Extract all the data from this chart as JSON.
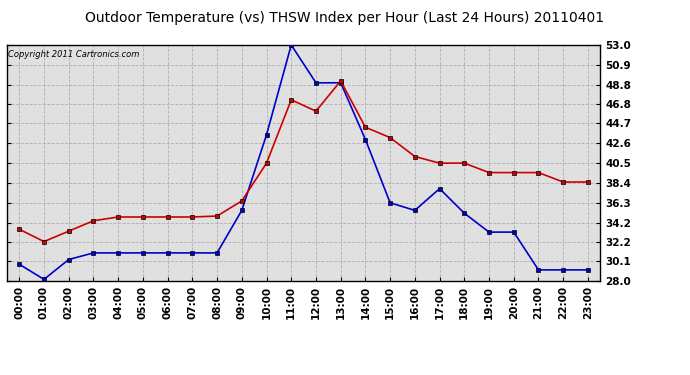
{
  "title": "Outdoor Temperature (vs) THSW Index per Hour (Last 24 Hours) 20110401",
  "copyright": "Copyright 2011 Cartronics.com",
  "hours": [
    0,
    1,
    2,
    3,
    4,
    5,
    6,
    7,
    8,
    9,
    10,
    11,
    12,
    13,
    14,
    15,
    16,
    17,
    18,
    19,
    20,
    21,
    22,
    23
  ],
  "temp": [
    33.5,
    32.2,
    33.3,
    34.4,
    34.8,
    34.8,
    34.8,
    34.8,
    34.9,
    36.5,
    40.5,
    47.2,
    46.0,
    49.2,
    44.3,
    43.2,
    41.2,
    40.5,
    40.5,
    39.5,
    39.5,
    39.5,
    38.5,
    38.5
  ],
  "thsw": [
    29.8,
    28.2,
    30.3,
    31.0,
    31.0,
    31.0,
    31.0,
    31.0,
    31.0,
    35.5,
    43.5,
    53.0,
    49.0,
    49.0,
    43.0,
    36.3,
    35.5,
    37.8,
    35.2,
    33.2,
    33.2,
    29.2,
    29.2,
    29.2
  ],
  "ylim_min": 28.0,
  "ylim_max": 53.0,
  "yticks": [
    28.0,
    30.1,
    32.2,
    34.2,
    36.3,
    38.4,
    40.5,
    42.6,
    44.7,
    46.8,
    48.8,
    50.9,
    53.0
  ],
  "temp_color": "#cc0000",
  "thsw_color": "#0000cc",
  "plot_bg": "#e0e0e0",
  "fig_bg": "#ffffff",
  "grid_color": "#aaaaaa",
  "title_fontsize": 10,
  "tick_fontsize": 7.5,
  "copyright_fontsize": 6,
  "marker_size": 3,
  "linewidth": 1.2
}
